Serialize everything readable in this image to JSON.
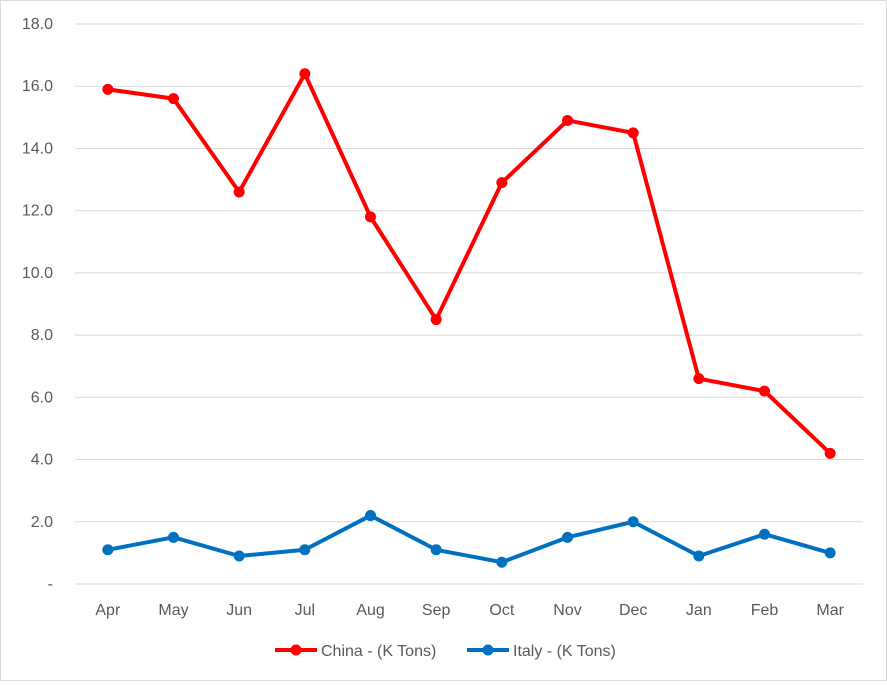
{
  "chart_data": {
    "type": "line",
    "categories": [
      "Apr",
      "May",
      "Jun",
      "Jul",
      "Aug",
      "Sep",
      "Oct",
      "Nov",
      "Dec",
      "Jan",
      "Feb",
      "Mar"
    ],
    "series": [
      {
        "name": "China - (K Tons)",
        "color": "#ff0000",
        "values": [
          15.9,
          15.6,
          12.6,
          16.4,
          11.8,
          8.5,
          12.9,
          14.9,
          14.5,
          6.6,
          6.2,
          4.2
        ]
      },
      {
        "name": "Italy - (K Tons)",
        "color": "#0070c0",
        "values": [
          1.1,
          1.5,
          0.9,
          1.1,
          2.2,
          1.1,
          0.7,
          1.5,
          2.0,
          0.9,
          1.6,
          1.0
        ]
      }
    ],
    "ylim": [
      0,
      18
    ],
    "yticks": [
      0,
      2,
      4,
      6,
      8,
      10,
      12,
      14,
      16,
      18
    ],
    "ytick_labels": [
      "-",
      "2.0",
      "4.0",
      "6.0",
      "8.0",
      "10.0",
      "12.0",
      "14.0",
      "16.0",
      "18.0"
    ],
    "grid": true,
    "legend_position": "bottom"
  }
}
